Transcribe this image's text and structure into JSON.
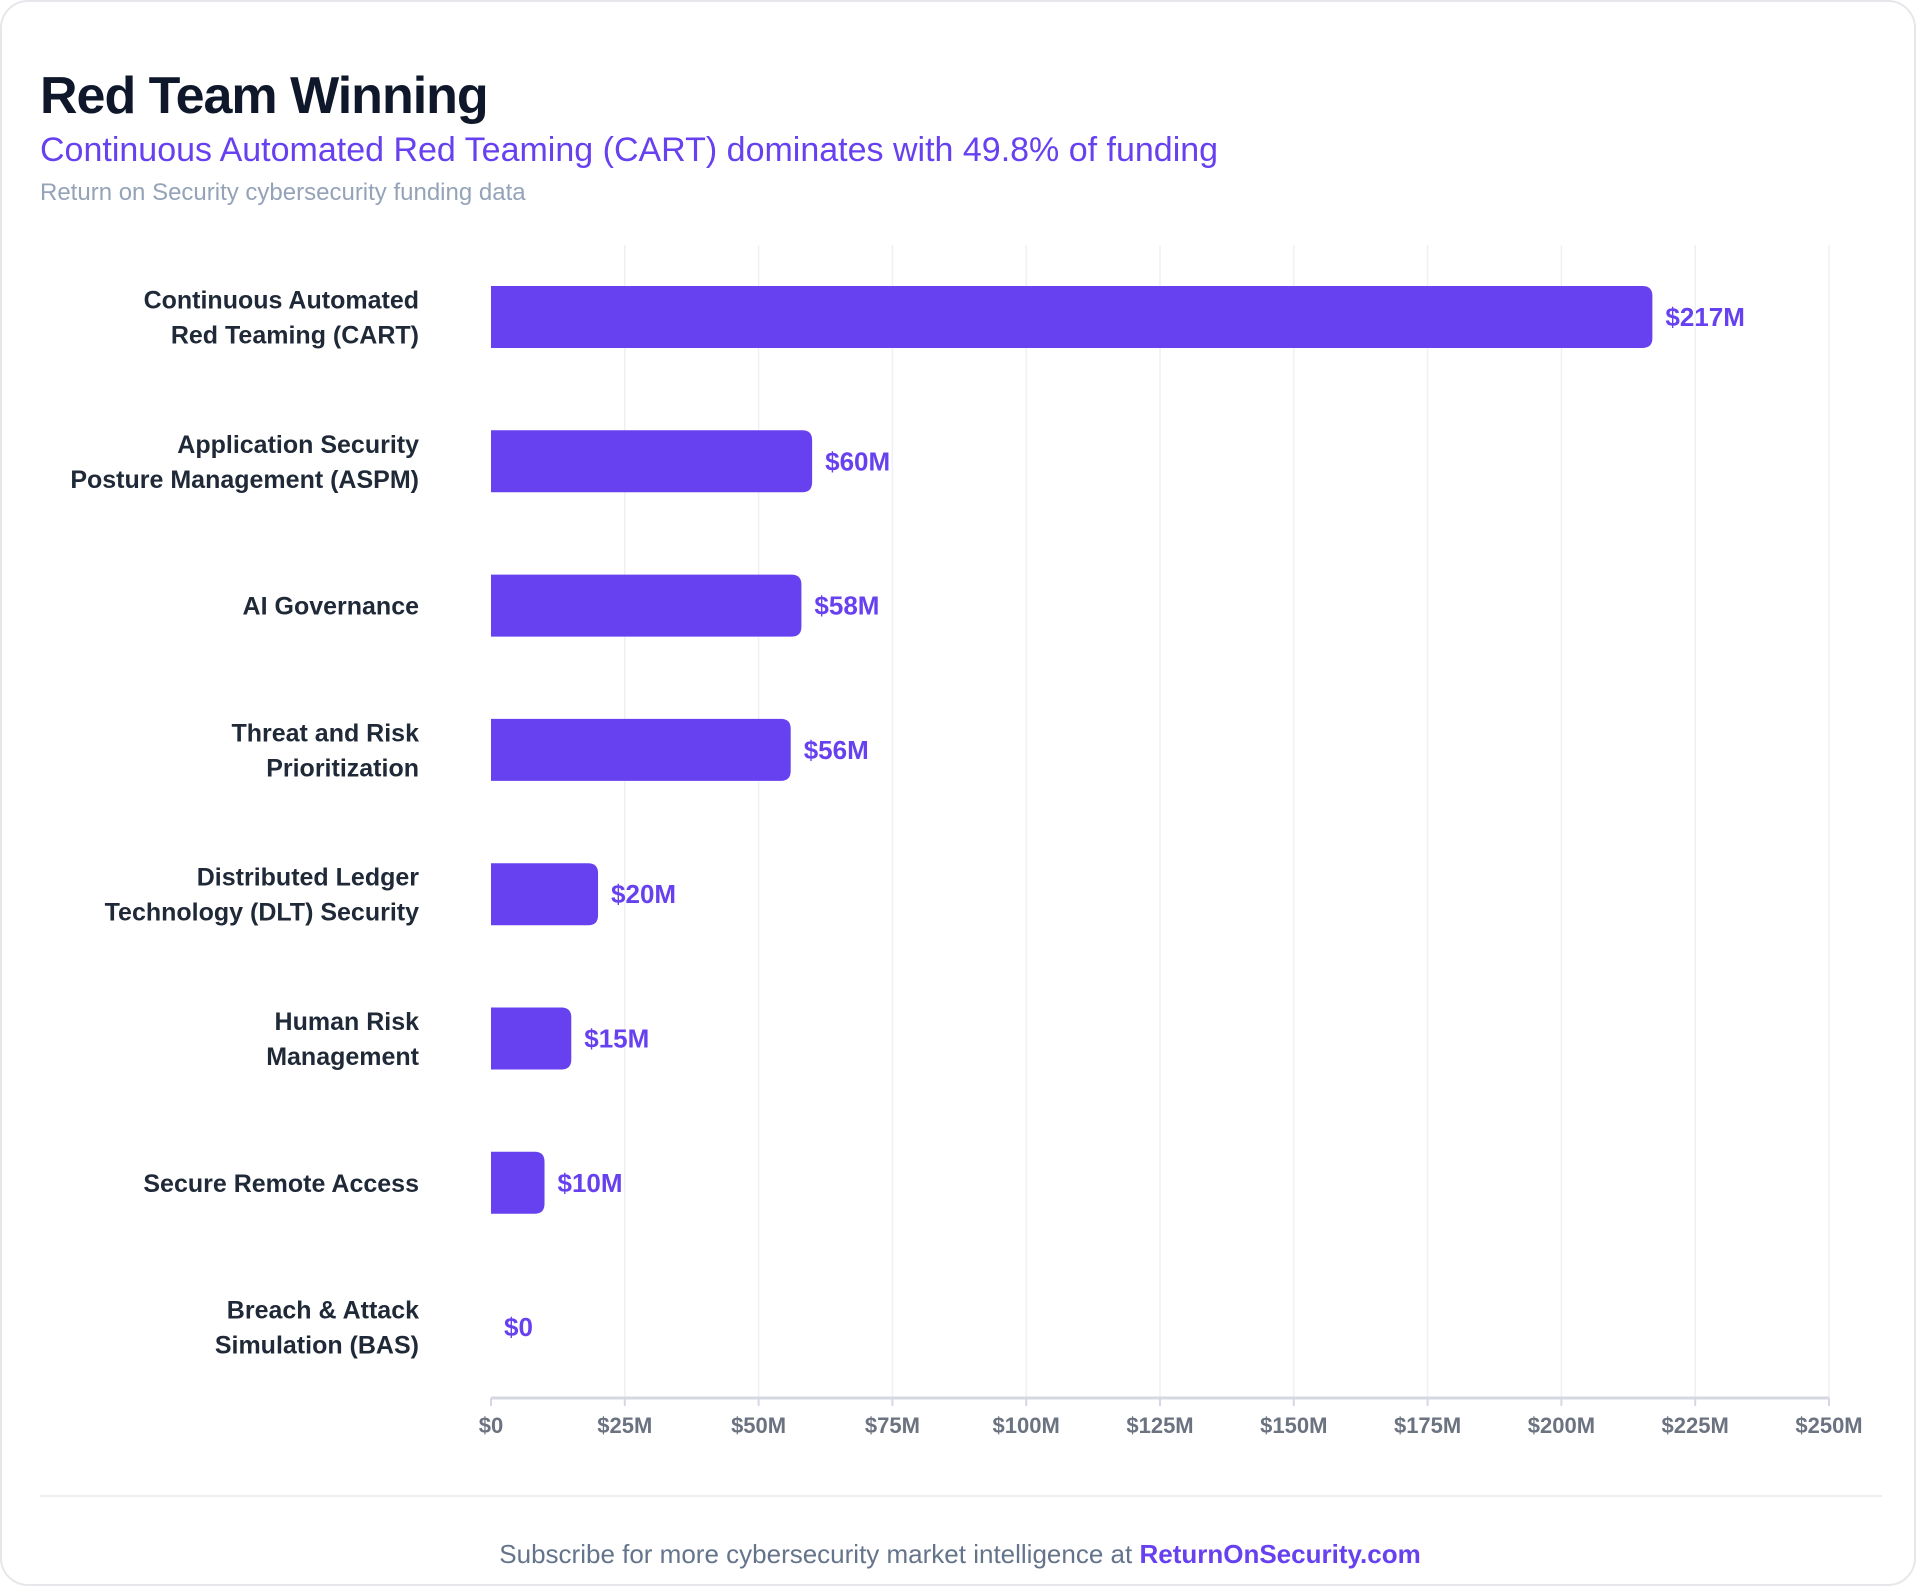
{
  "header": {
    "title": "Red Team Winning",
    "subtitle": "Continuous Automated Red Teaming (CART) dominates with 49.8% of funding",
    "source": "Return on Security cybersecurity funding data"
  },
  "footer": {
    "text": "Subscribe for more cybersecurity market intelligence at",
    "link_label": "ReturnOnSecurity.com"
  },
  "colors": {
    "bar": "#6741f0",
    "title": "#0f172a",
    "accent": "#6741f0"
  },
  "chart_data": {
    "type": "bar",
    "orientation": "horizontal",
    "title": "Red Team Winning",
    "subtitle": "Continuous Automated Red Teaming (CART) dominates with 49.8% of funding",
    "xlabel": "",
    "ylabel": "",
    "grid": true,
    "categories": [
      [
        "Continuous Automated",
        "Red Teaming (CART)"
      ],
      [
        "Application Security",
        "Posture Management (ASPM)"
      ],
      [
        "AI Governance"
      ],
      [
        "Threat and Risk",
        "Prioritization"
      ],
      [
        "Distributed Ledger",
        "Technology (DLT) Security"
      ],
      [
        "Human Risk",
        "Management"
      ],
      [
        "Secure Remote Access"
      ],
      [
        "Breach & Attack",
        "Simulation (BAS)"
      ]
    ],
    "values": [
      217,
      60,
      58,
      56,
      20,
      15,
      10,
      0
    ],
    "value_labels": [
      "$217M",
      "$60M",
      "$58M",
      "$56M",
      "$20M",
      "$15M",
      "$10M",
      "$0"
    ],
    "unit": "USD millions",
    "xlim": [
      0,
      250
    ],
    "ticks": [
      0,
      25,
      50,
      75,
      100,
      125,
      150,
      175,
      200,
      225,
      250
    ],
    "tick_labels": [
      "$0",
      "$25M",
      "$50M",
      "$75M",
      "$100M",
      "$125M",
      "$150M",
      "$175M",
      "$200M",
      "$225M",
      "$250M"
    ]
  }
}
